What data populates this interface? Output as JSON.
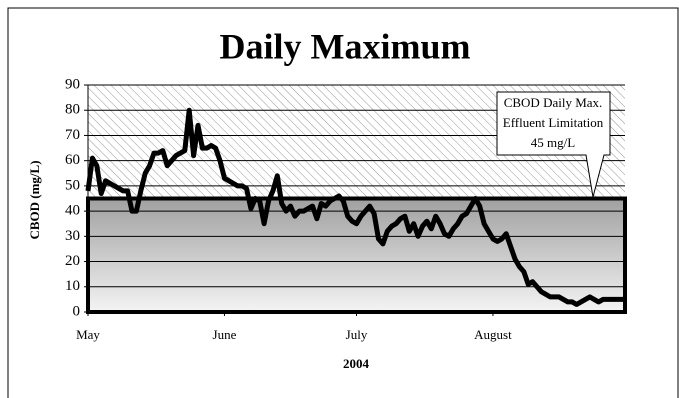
{
  "chart_data": {
    "type": "line",
    "title": "Daily Maximum",
    "y_label": "CBOD (mg/L)",
    "x_label": "2004",
    "annotation": [
      "CBOD Daily Max.",
      "Effluent Limitation"
    ],
    "limit": {
      "value": 45,
      "label": "45 mg/L"
    },
    "color": "#000000",
    "grid": true,
    "ylim": [
      0,
      90
    ],
    "yticks": [
      0,
      10,
      20,
      30,
      40,
      50,
      60,
      70,
      80,
      90
    ],
    "xlim": [
      0,
      122
    ],
    "xticks": [
      {
        "value": 0,
        "label": "May"
      },
      {
        "value": 31,
        "label": "June"
      },
      {
        "value": 61,
        "label": "July"
      },
      {
        "value": 92,
        "label": "August"
      }
    ],
    "x": [
      0,
      1,
      2,
      3,
      4,
      5,
      6,
      7,
      8,
      9,
      10,
      11,
      12,
      13,
      14,
      15,
      16,
      17,
      18,
      19,
      20,
      21,
      22,
      23,
      24,
      25,
      26,
      27,
      28,
      29,
      30,
      31,
      32,
      33,
      34,
      35,
      36,
      37,
      38,
      39,
      40,
      41,
      42,
      43,
      44,
      45,
      46,
      47,
      48,
      49,
      50,
      51,
      52,
      53,
      54,
      55,
      56,
      57,
      58,
      59,
      60,
      61,
      62,
      63,
      64,
      65,
      66,
      67,
      68,
      69,
      70,
      71,
      72,
      73,
      74,
      75,
      76,
      77,
      78,
      79,
      80,
      81,
      82,
      83,
      84,
      85,
      86,
      87,
      88,
      89,
      90,
      91,
      92,
      93,
      94,
      95,
      96,
      97,
      98,
      99,
      100,
      101,
      102,
      103,
      104,
      105,
      106,
      107,
      108,
      109,
      110,
      111,
      112,
      113,
      114,
      115,
      116,
      117,
      118,
      119,
      120,
      121,
      122
    ],
    "values": [
      48,
      61,
      58,
      47,
      52,
      51,
      50,
      49,
      48,
      48,
      40,
      40,
      48,
      55,
      58,
      63,
      63,
      64,
      58,
      60,
      62,
      63,
      64,
      80,
      62,
      74,
      65,
      65,
      66,
      65,
      60,
      53,
      52,
      51,
      50,
      50,
      49,
      41,
      45,
      44,
      35,
      44,
      48,
      54,
      43,
      40,
      42,
      38,
      40,
      40,
      41,
      42,
      37,
      43,
      42,
      44,
      45,
      46,
      44,
      38,
      36,
      35,
      38,
      40,
      42,
      39,
      29,
      27,
      32,
      34,
      35,
      37,
      38,
      32,
      35,
      30,
      34,
      36,
      33,
      38,
      35,
      31,
      30,
      33,
      35,
      38,
      39,
      42,
      45,
      42,
      35,
      32,
      29,
      28,
      29,
      31,
      26,
      21,
      18,
      16,
      11,
      12,
      10,
      8,
      7,
      6,
      6,
      6,
      5,
      4,
      4,
      3,
      4,
      5,
      6,
      5,
      4,
      5,
      5,
      5,
      5,
      5,
      5
    ]
  }
}
